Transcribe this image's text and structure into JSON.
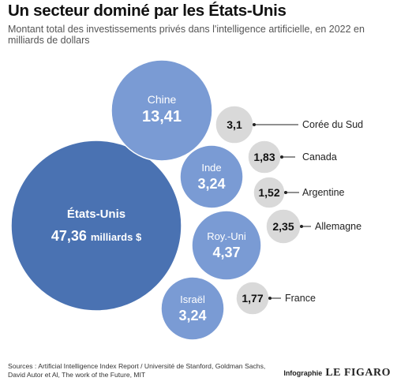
{
  "header": {
    "title": "Un secteur dominé par les États-Unis",
    "subtitle": "Montant total des investissements privés dans l'intelligence artificielle, en 2022 en milliards de dollars"
  },
  "footer": {
    "sources": "Sources : Artificial Intelligence Index Report / Université de Stanford, Goldman Sachs, David Autor et Al, The work of the Future, MIT",
    "credit_label": "Infographie",
    "credit_logo": "LE FIGARO"
  },
  "chart_data": {
    "type": "bubble",
    "title": "Un secteur dominé par les États-Unis",
    "subtitle": "Montant total des investissements privés dans l'intelligence artificielle, en 2022 en milliards de dollars",
    "unit_label": "milliards $",
    "colors": {
      "large": "#4a72b2",
      "medium": "#7a9bd4",
      "small": "#d9d9d9",
      "leader": "#222222"
    },
    "points": [
      {
        "country": "États-Unis",
        "value": 47.36,
        "value_label": "47,36",
        "tier": "large"
      },
      {
        "country": "Chine",
        "value": 13.41,
        "value_label": "13,41",
        "tier": "medium"
      },
      {
        "country": "Royaume-Uni",
        "label": "Roy.-Uni",
        "value": 4.37,
        "value_label": "4,37",
        "tier": "medium"
      },
      {
        "country": "Inde",
        "value": 3.24,
        "value_label": "3,24",
        "tier": "medium"
      },
      {
        "country": "Israël",
        "value": 3.24,
        "value_label": "3,24",
        "tier": "medium"
      },
      {
        "country": "Corée du Sud",
        "value": 3.1,
        "value_label": "3,1",
        "tier": "small"
      },
      {
        "country": "Allemagne",
        "value": 2.35,
        "value_label": "2,35",
        "tier": "small"
      },
      {
        "country": "Canada",
        "value": 1.83,
        "value_label": "1,83",
        "tier": "small"
      },
      {
        "country": "France",
        "value": 1.77,
        "value_label": "1,77",
        "tier": "small"
      },
      {
        "country": "Argentine",
        "value": 1.52,
        "value_label": "1,52",
        "tier": "small"
      }
    ]
  }
}
